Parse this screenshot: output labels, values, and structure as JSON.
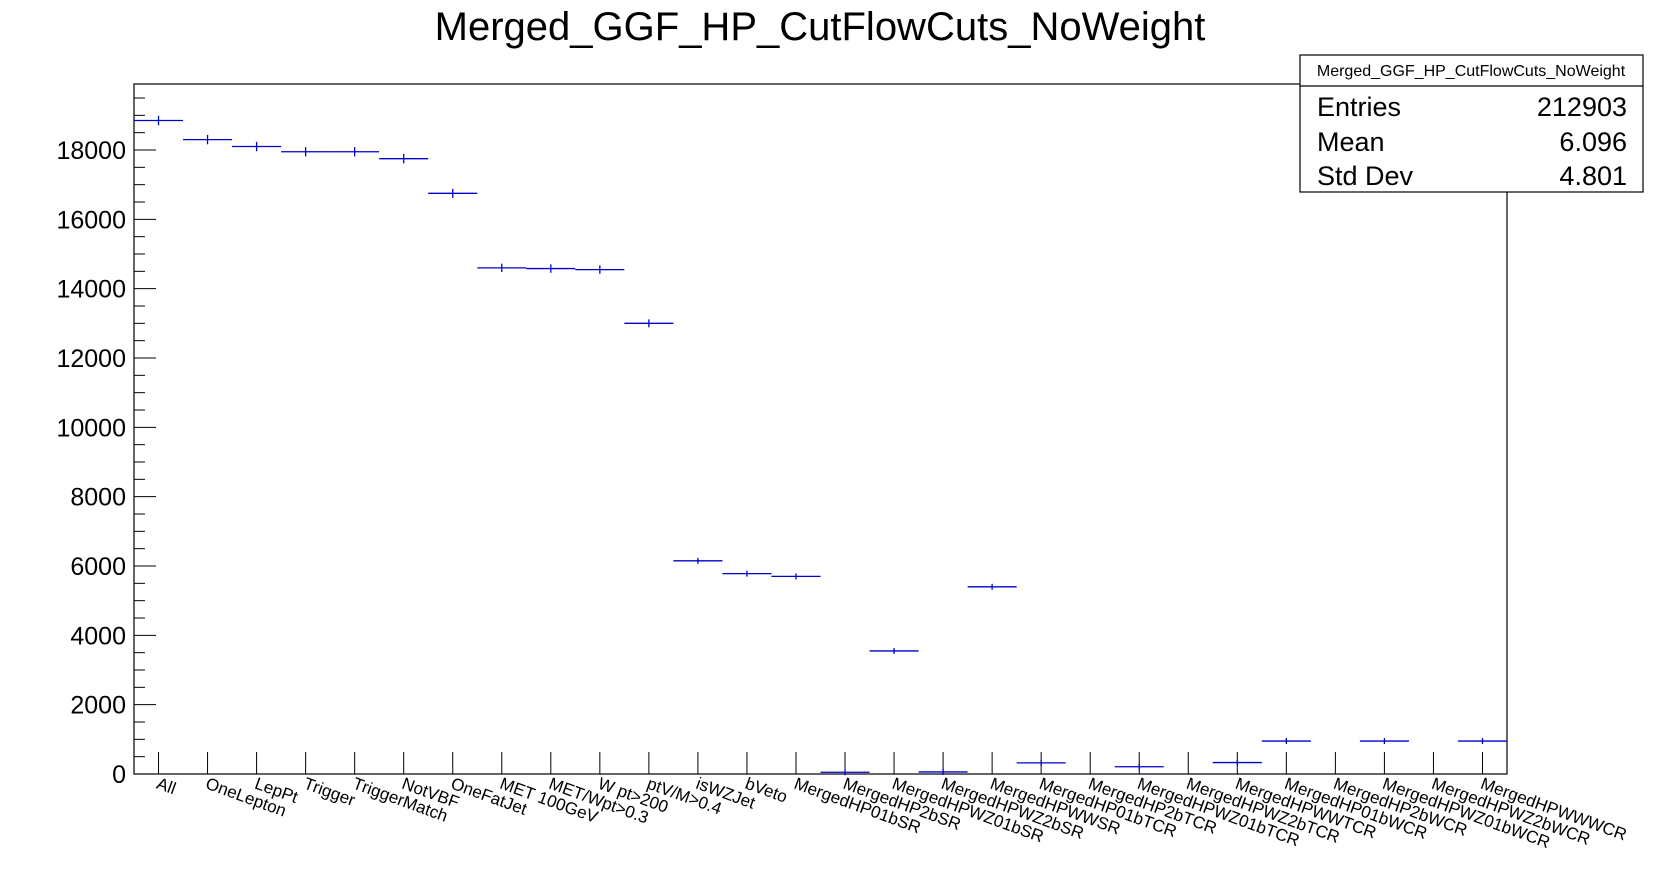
{
  "chart_data": {
    "type": "histogram",
    "title": "Merged_GGF_HP_CutFlowCuts_NoWeight",
    "xlabel": "",
    "ylabel": "",
    "ylim": [
      0,
      20000
    ],
    "y_ticks": [
      "0",
      "2000",
      "4000",
      "6000",
      "8000",
      "10000",
      "12000",
      "14000",
      "16000",
      "18000"
    ],
    "grid": false,
    "line_color": "#0000cc",
    "categories": [
      "All",
      "OneLepton",
      "LepPt",
      "Trigger",
      "TriggerMatch",
      "NotVBF",
      "OneFatJet",
      "MET 100GeV",
      "MET/Wpt>0.3",
      "W pt>200",
      "ptV/M>0.4",
      "isWZJet",
      "bVeto",
      "MergedHP01bSR",
      "MergedHP2bSR",
      "MergedHPWZ01bSR",
      "MergedHPWZ2bSR",
      "MergedHPWWSR",
      "MergedHP01bTCR",
      "MergedHP2bTCR",
      "MergedHPWZ01bTCR",
      "MergedHPWZ2bTCR",
      "MergedHPWWTCR",
      "MergedHP01bWCR",
      "MergedHP2bWCR",
      "MergedHPWZ01bWCR",
      "MergedHPWZ2bWCR",
      "MergedHPWWWCR"
    ],
    "values": [
      18850,
      18300,
      18100,
      17950,
      17950,
      17750,
      16750,
      14600,
      14580,
      14550,
      13000,
      6150,
      5780,
      5700,
      50,
      3550,
      60,
      5400,
      320,
      0,
      210,
      0,
      330,
      950,
      0,
      950,
      0,
      950
    ],
    "stats_box": {
      "title": "Merged_GGF_HP_CutFlowCuts_NoWeight",
      "rows": [
        {
          "label": "Entries",
          "value": "212903"
        },
        {
          "label": "Mean",
          "value": "6.096"
        },
        {
          "label": "Std Dev",
          "value": "4.801"
        }
      ]
    }
  }
}
